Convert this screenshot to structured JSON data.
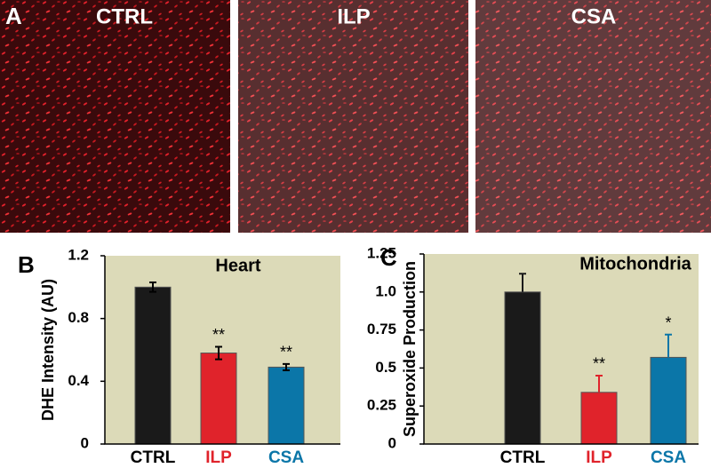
{
  "panel_a": {
    "label": "A",
    "images": [
      "CTRL",
      "ILP",
      "CSA"
    ]
  },
  "chart_data": [
    {
      "type": "bar",
      "label": "B",
      "title": "Heart",
      "y_label": "DHE Intensity (AU)",
      "categories": [
        "CTRL",
        "ILP",
        "CSA"
      ],
      "values": [
        1.0,
        0.58,
        0.49
      ],
      "errors": [
        0.03,
        0.04,
        0.02
      ],
      "error_direction": "both",
      "significance": [
        null,
        "**",
        "**"
      ],
      "colors": [
        "#1a1a1a",
        "#e0232b",
        "#0b76a8"
      ],
      "label_colors": [
        "#000000",
        "#e0232b",
        "#0b76a8"
      ],
      "background": "#dcdab8",
      "ylim": [
        0,
        1.2
      ],
      "yticks": [
        0,
        0.4,
        0.8,
        1.2
      ]
    },
    {
      "type": "bar",
      "label": "C",
      "title": "Mitochondria",
      "y_label": "Superoxide Production",
      "categories": [
        "CTRL",
        "ILP",
        "CSA"
      ],
      "values": [
        1.0,
        0.34,
        0.57
      ],
      "errors": [
        0.12,
        0.11,
        0.15
      ],
      "error_direction": "up",
      "significance": [
        null,
        "**",
        "*"
      ],
      "colors": [
        "#1a1a1a",
        "#e0232b",
        "#0b76a8"
      ],
      "label_colors": [
        "#000000",
        "#e0232b",
        "#0b76a8"
      ],
      "background": "#dcdab8",
      "ylim": [
        0,
        1.25
      ],
      "yticks": [
        0,
        0.25,
        0.5,
        0.75,
        {
          "value": 1,
          "label": "1.0"
        },
        1.25
      ]
    }
  ]
}
